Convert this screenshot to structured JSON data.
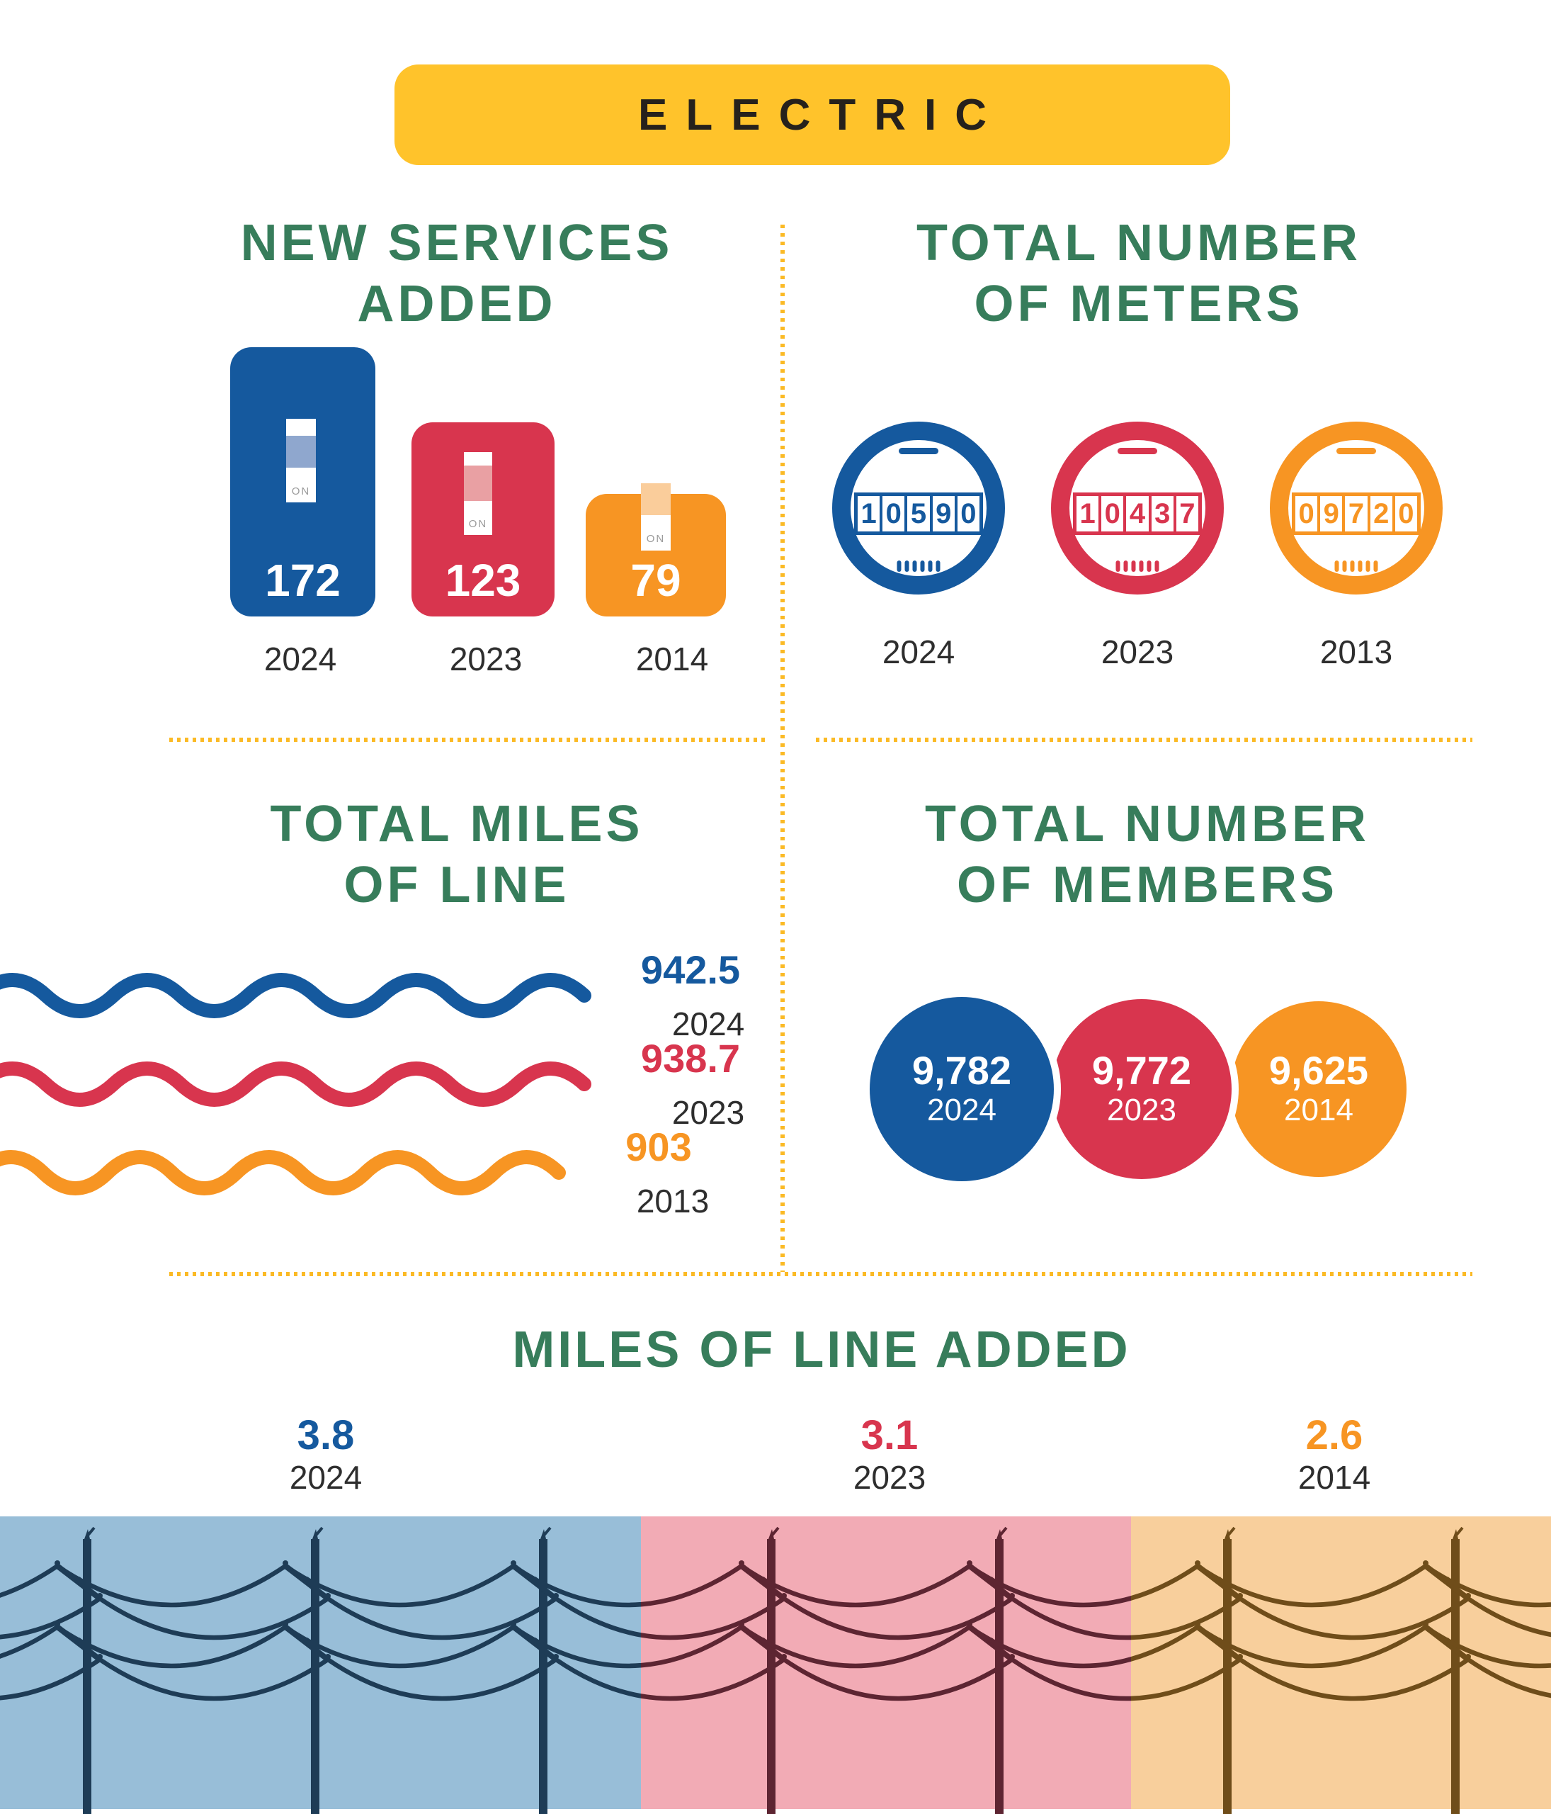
{
  "banner": {
    "label": "ELECTRIC"
  },
  "switch_label": "ON",
  "colors": {
    "accent_yellow": "#FFC32B",
    "title_green": "#377D5B",
    "blue": "#15599E",
    "red": "#D8354E",
    "orange": "#F79523",
    "bg_light_blue": "#98BED8",
    "bg_pink": "#F2ABB5",
    "bg_light_orange": "#F8CF9C"
  },
  "new_services": {
    "title_line1": "NEW SERVICES",
    "title_line2": "ADDED",
    "items": [
      {
        "value": "172",
        "year": "2024"
      },
      {
        "value": "123",
        "year": "2023"
      },
      {
        "value": "79",
        "year": "2014"
      }
    ]
  },
  "meters": {
    "title_line1": "TOTAL NUMBER",
    "title_line2": "OF METERS",
    "items": [
      {
        "digits": "10590",
        "year": "2024"
      },
      {
        "digits": "10437",
        "year": "2023"
      },
      {
        "digits": "09720",
        "year": "2013"
      }
    ]
  },
  "total_miles": {
    "title_line1": "TOTAL MILES",
    "title_line2": "OF LINE",
    "items": [
      {
        "value": "942.5",
        "year": "2024"
      },
      {
        "value": "938.7",
        "year": "2023"
      },
      {
        "value": "903",
        "year": "2013"
      }
    ]
  },
  "members": {
    "title_line1": "TOTAL NUMBER",
    "title_line2": "OF MEMBERS",
    "items": [
      {
        "value": "9,782",
        "year": "2024"
      },
      {
        "value": "9,772",
        "year": "2023"
      },
      {
        "value": "9,625",
        "year": "2014"
      }
    ]
  },
  "miles_added": {
    "title": "MILES OF LINE ADDED",
    "items": [
      {
        "value": "3.8",
        "year": "2024"
      },
      {
        "value": "3.1",
        "year": "2023"
      },
      {
        "value": "2.6",
        "year": "2014"
      }
    ]
  },
  "chart_data": [
    {
      "type": "bar",
      "title": "NEW SERVICES ADDED",
      "categories": [
        "2024",
        "2023",
        "2014"
      ],
      "values": [
        172,
        123,
        79
      ],
      "xlabel": "",
      "ylabel": "",
      "legend_position": "none",
      "colors": [
        "#15599E",
        "#D8354E",
        "#F79523"
      ]
    },
    {
      "type": "table",
      "title": "TOTAL NUMBER OF METERS",
      "categories": [
        "2024",
        "2023",
        "2013"
      ],
      "values": [
        10590,
        10437,
        9720
      ],
      "display_digits": [
        "10590",
        "10437",
        "09720"
      ]
    },
    {
      "type": "line",
      "title": "TOTAL MILES OF LINE",
      "categories": [
        "2024",
        "2023",
        "2013"
      ],
      "values": [
        942.5,
        938.7,
        903
      ],
      "colors": [
        "#15599E",
        "#D8354E",
        "#F79523"
      ]
    },
    {
      "type": "table",
      "title": "TOTAL NUMBER OF MEMBERS",
      "categories": [
        "2024",
        "2023",
        "2014"
      ],
      "values": [
        9782,
        9772,
        9625
      ]
    },
    {
      "type": "bar",
      "title": "MILES OF LINE ADDED",
      "categories": [
        "2024",
        "2023",
        "2014"
      ],
      "values": [
        3.8,
        3.1,
        2.6
      ],
      "colors": [
        "#15599E",
        "#D8354E",
        "#F79523"
      ]
    }
  ]
}
